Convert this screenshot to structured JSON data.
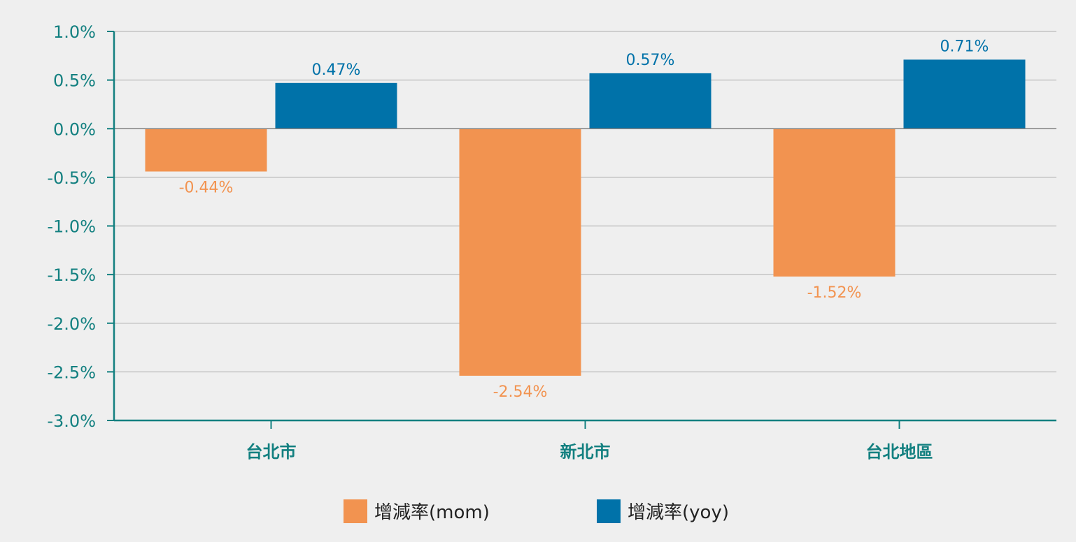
{
  "chart_data": {
    "type": "bar",
    "title": "",
    "xlabel": "",
    "ylabel": "",
    "categories": [
      "台北市",
      "新北市",
      "台北地區"
    ],
    "series": [
      {
        "name": "增減率(mom)",
        "values": [
          -0.44,
          -2.54,
          -1.52
        ],
        "labels": [
          "-0.44%",
          "-2.54%",
          "-1.52%"
        ],
        "color": "#f29350"
      },
      {
        "name": "增減率(yoy)",
        "values": [
          0.47,
          0.57,
          0.71
        ],
        "labels": [
          "0.47%",
          "0.57%",
          "0.71%"
        ],
        "color": "#0072a9"
      }
    ],
    "ylim": [
      -3.0,
      1.0
    ],
    "yticks": [
      1.0,
      0.5,
      0.0,
      -0.5,
      -1.0,
      -1.5,
      -2.0,
      -2.5,
      -3.0
    ],
    "ytick_labels": [
      "1.0%",
      "0.5%",
      "0.0%",
      "-0.5%",
      "-1.0%",
      "-1.5%",
      "-2.0%",
      "-2.5%",
      "-3.0%"
    ],
    "grid": true,
    "legend_position": "bottom-center",
    "colors": {
      "axis": "#138080",
      "grid": "#c4c4c4",
      "zero_line": "#808080",
      "background": "#efefef"
    }
  }
}
